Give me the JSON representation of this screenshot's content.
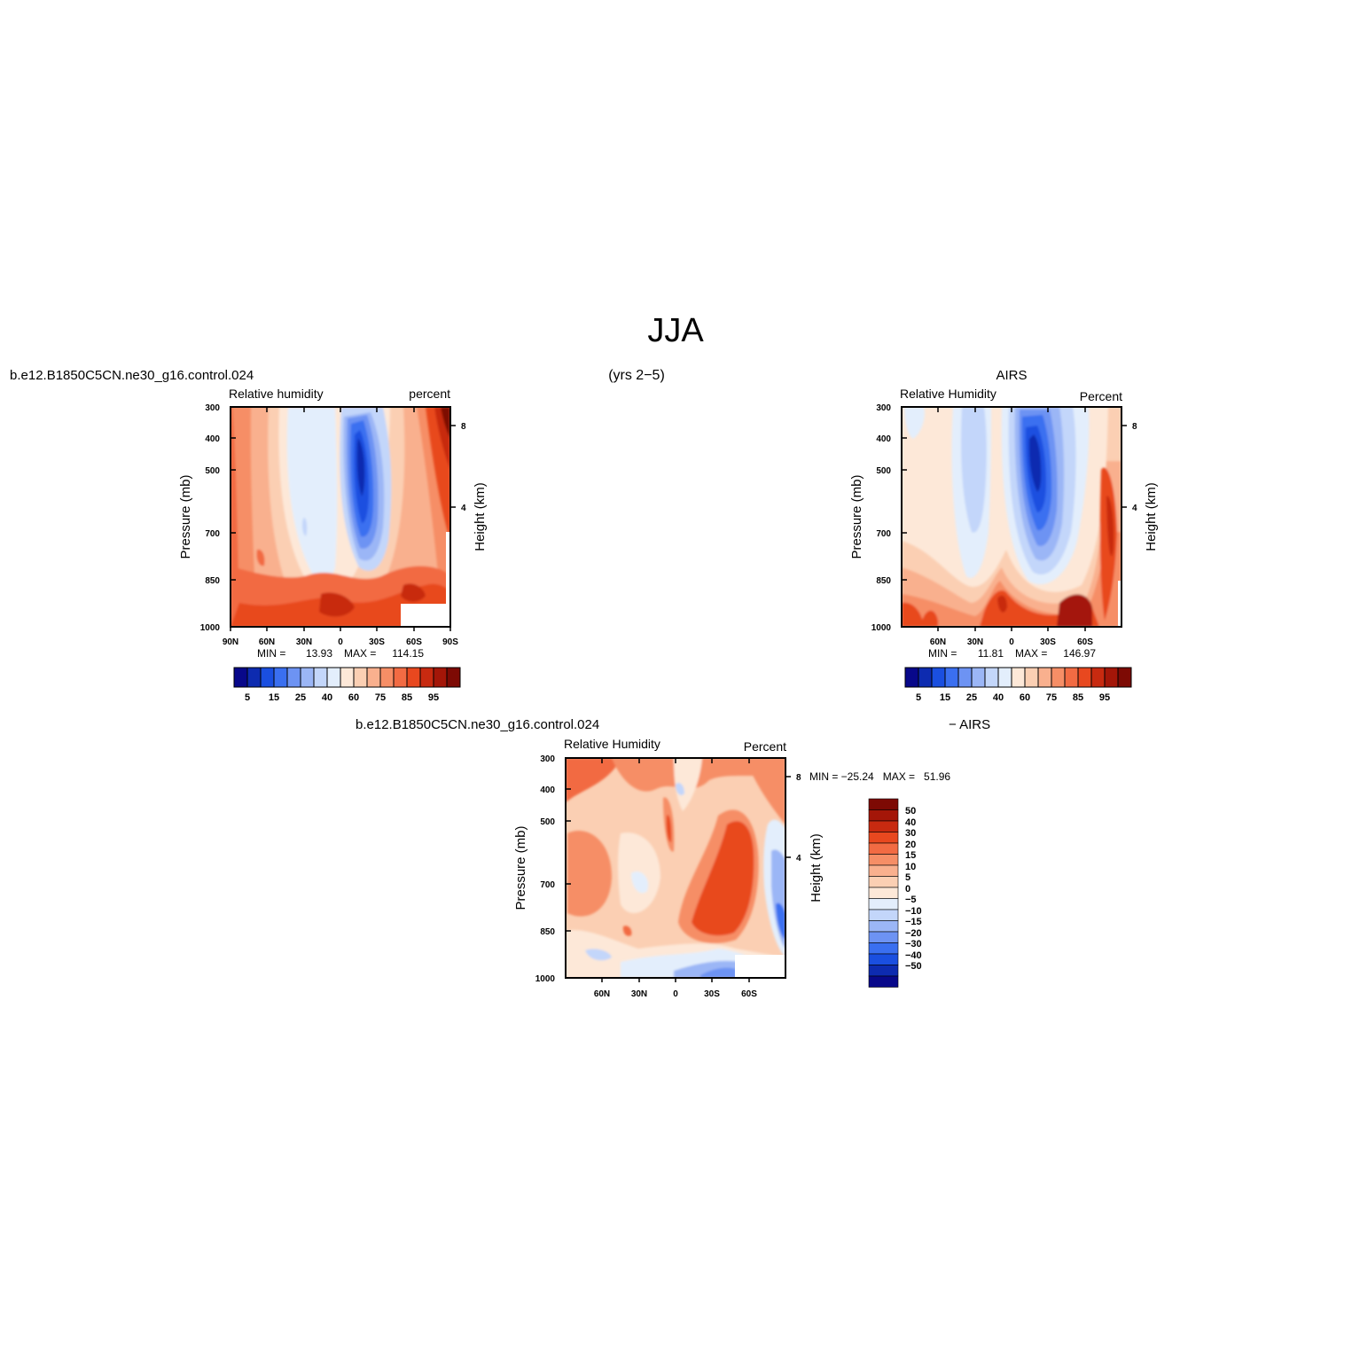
{
  "figure": {
    "title": "JJA",
    "subtitle": "(yrs 2−5)"
  },
  "colors": {
    "rh_palette": [
      "#08088a",
      "#0d2bb0",
      "#1a4fe0",
      "#3a6ff0",
      "#6d93f3",
      "#9bb6f6",
      "#c3d6fa",
      "#e3eefc",
      "#fde8d8",
      "#fbcfb3",
      "#f9b08e",
      "#f68e66",
      "#f26b43",
      "#e8481f",
      "#c82a10",
      "#a41608",
      "#7d0a04"
    ],
    "diff_palette": [
      "#08088a",
      "#0d2bb0",
      "#1a4fe0",
      "#3a6ff0",
      "#6d93f3",
      "#9bb6f6",
      "#c3d6fa",
      "#e3eefc",
      "#fde8d8",
      "#fbcfb3",
      "#f9b08e",
      "#f68e66",
      "#f26b43",
      "#e8481f",
      "#c82a10",
      "#a41608",
      "#7d0a04"
    ]
  },
  "chart_data": [
    {
      "type": "heatmap",
      "case_title": "b.e12.B1850C5CN.ne30_g16.control.024",
      "left_label": "Relative  humidity",
      "right_label": "percent",
      "ylabel": "Pressure (mb)",
      "ylabel_right": "Height (km)",
      "x_ticks": [
        "90N",
        "60N",
        "30N",
        "0",
        "30S",
        "60S",
        "90S"
      ],
      "y_ticks": [
        "300",
        "400",
        "500",
        "700",
        "850",
        "1000"
      ],
      "height_ticks": [
        "8",
        "4"
      ],
      "min_label": "MIN =",
      "min_value": "13.93",
      "max_label": "MAX =",
      "max_value": "114.15",
      "colorbar_labels": [
        "5",
        "15",
        "25",
        "40",
        "60",
        "75",
        "85",
        "95"
      ],
      "grid": false
    },
    {
      "type": "heatmap",
      "case_title": "AIRS",
      "left_label": "Relative  Humidity",
      "right_label": "Percent",
      "ylabel": "Pressure (mb)",
      "ylabel_right": "Height (km)",
      "x_ticks": [
        "60N",
        "30N",
        "0",
        "30S",
        "60S"
      ],
      "y_ticks": [
        "300",
        "400",
        "500",
        "700",
        "850",
        "1000"
      ],
      "height_ticks": [
        "8",
        "4"
      ],
      "min_label": "MIN =",
      "min_value": "11.81",
      "max_label": "MAX =",
      "max_value": "146.97",
      "colorbar_labels": [
        "5",
        "15",
        "25",
        "40",
        "60",
        "75",
        "85",
        "95"
      ],
      "grid": false
    },
    {
      "type": "heatmap",
      "case_title": "b.e12.B1850C5CN.ne30_g16.control.024",
      "case_title_right": "−  AIRS",
      "left_label": "Relative  Humidity",
      "right_label": "Percent",
      "ylabel": "Pressure (mb)",
      "ylabel_right": "Height (km)",
      "x_ticks": [
        "60N",
        "30N",
        "0",
        "30S",
        "60S"
      ],
      "y_ticks": [
        "300",
        "400",
        "500",
        "700",
        "850",
        "1000"
      ],
      "height_ticks": [
        "8",
        "4"
      ],
      "minmax_text": "MIN = −25.24   MAX =   51.96",
      "colorbar_labels": [
        "50",
        "40",
        "30",
        "20",
        "15",
        "10",
        "5",
        "0",
        "−5",
        "−10",
        "−15",
        "−20",
        "−30",
        "−40",
        "−50"
      ],
      "grid": false
    }
  ]
}
